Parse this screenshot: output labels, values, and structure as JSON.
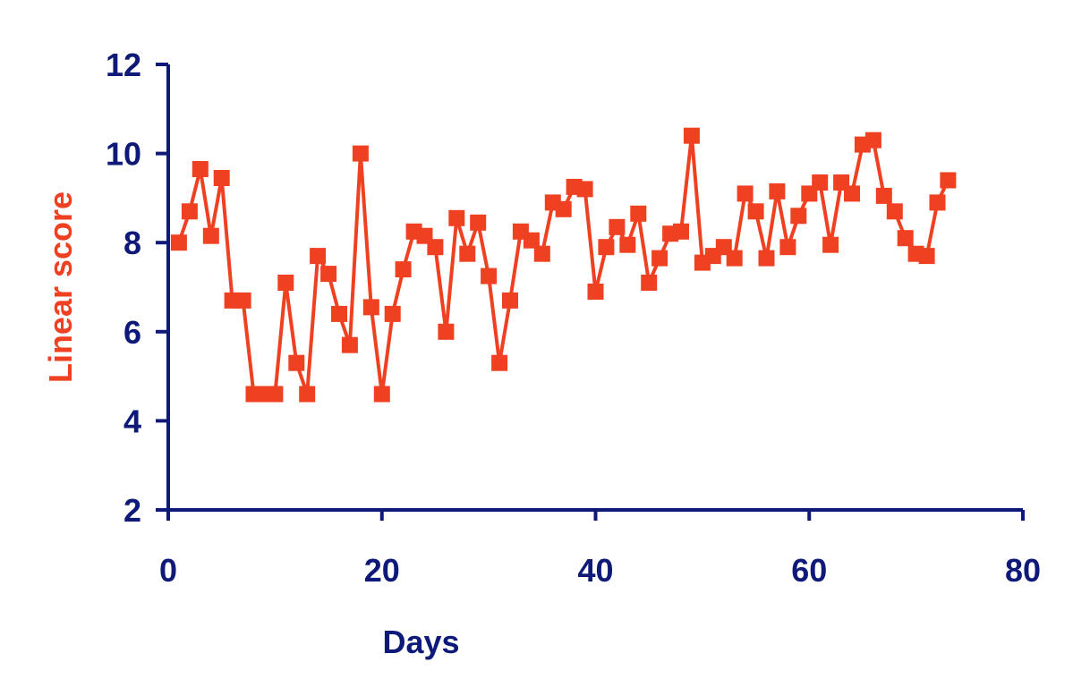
{
  "chart_data": {
    "type": "line",
    "title": "",
    "xlabel": "Days",
    "ylabel": "Linear score",
    "xlim": [
      0,
      80
    ],
    "ylim": [
      2,
      12
    ],
    "x_ticks": [
      "0",
      "20",
      "40",
      "60",
      "80"
    ],
    "y_ticks": [
      "2",
      "4",
      "6",
      "8",
      "10",
      "12"
    ],
    "grid": false,
    "legend": "none",
    "series": [
      {
        "x": [
          1,
          2,
          3,
          4,
          5,
          6,
          7,
          8,
          9,
          10,
          11,
          12,
          13,
          14,
          15,
          16,
          17,
          18,
          19,
          20,
          21,
          22,
          23,
          24,
          25,
          26,
          27,
          28,
          29,
          30,
          31,
          32,
          33,
          34,
          35,
          36,
          37,
          38,
          39,
          40,
          41,
          42,
          43,
          44,
          45,
          46,
          47,
          48,
          49,
          50,
          51,
          52,
          53,
          54,
          55,
          56,
          57,
          58,
          59,
          60,
          61,
          62,
          63,
          64,
          65,
          66,
          67,
          68,
          69,
          70,
          71,
          72,
          73
        ],
        "y": [
          8.0,
          8.7,
          9.65,
          8.15,
          9.45,
          6.7,
          6.7,
          4.6,
          4.6,
          4.6,
          7.1,
          5.3,
          4.6,
          7.7,
          7.3,
          6.4,
          5.7,
          10.0,
          6.55,
          4.6,
          6.4,
          7.4,
          8.25,
          8.15,
          7.9,
          6.0,
          8.55,
          7.75,
          8.45,
          7.25,
          5.3,
          6.7,
          8.25,
          8.05,
          7.75,
          8.9,
          8.75,
          9.25,
          9.2,
          6.9,
          7.9,
          8.35,
          7.95,
          8.65,
          7.1,
          7.65,
          8.2,
          8.25,
          10.4,
          7.55,
          7.7,
          7.9,
          7.65,
          9.1,
          8.7,
          7.65,
          9.15,
          7.9,
          8.6,
          9.1,
          9.35,
          7.95,
          9.35,
          9.1,
          10.2,
          10.3,
          9.05,
          8.7,
          8.1,
          7.75,
          7.7,
          8.9,
          9.4
        ]
      }
    ],
    "colors": {
      "axis": "#0f1a78",
      "series": "#ef4122",
      "ylabel": "#ef4122",
      "xlabel": "#0f1a78"
    }
  }
}
